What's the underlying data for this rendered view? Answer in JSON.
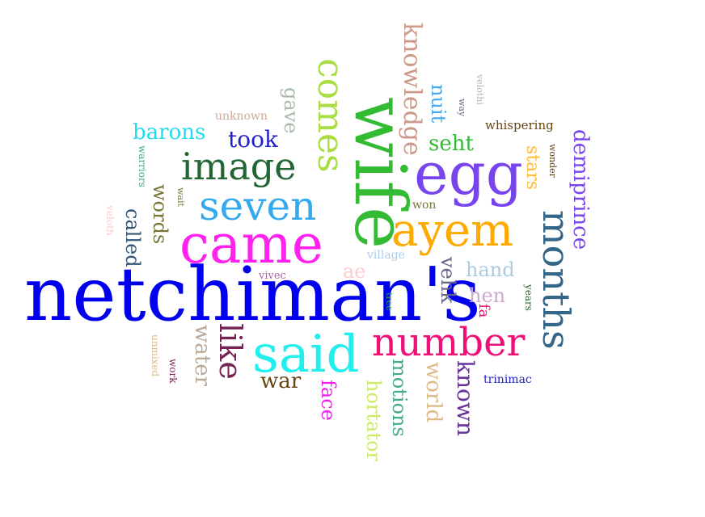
{
  "words": [
    {
      "text": "netchiman's",
      "color": "#0000ee"
    },
    {
      "text": "wife",
      "color": "#33bb33"
    },
    {
      "text": "said",
      "color": "#22eeee"
    },
    {
      "text": "came",
      "color": "#ff22ee"
    },
    {
      "text": "egg",
      "color": "#7744ee"
    },
    {
      "text": "ayem",
      "color": "#ffaa00"
    },
    {
      "text": "seven",
      "color": "#33aaee"
    },
    {
      "text": "number",
      "color": "#ee1177"
    },
    {
      "text": "months",
      "color": "#336688"
    },
    {
      "text": "image",
      "color": "#226633"
    },
    {
      "text": "comes",
      "color": "#aadd44"
    },
    {
      "text": "like",
      "color": "#772255"
    },
    {
      "text": "knowledge",
      "color": "#cc9988"
    },
    {
      "text": "known",
      "color": "#663399"
    },
    {
      "text": "demiprince",
      "color": "#7744ee"
    },
    {
      "text": "world",
      "color": "#ddbb88"
    },
    {
      "text": "motions",
      "color": "#44aa88"
    },
    {
      "text": "hortator",
      "color": "#ccee66"
    },
    {
      "text": "war",
      "color": "#664411"
    },
    {
      "text": "water",
      "color": "#bbaa99"
    },
    {
      "text": "words",
      "color": "#777733"
    },
    {
      "text": "called",
      "color": "#335577"
    },
    {
      "text": "barons",
      "color": "#22ddee"
    },
    {
      "text": "took",
      "color": "#2222cc"
    },
    {
      "text": "gave",
      "color": "#aabbaa"
    },
    {
      "text": "face",
      "color": "#ee22ee"
    },
    {
      "text": "seht",
      "color": "#33bb33"
    },
    {
      "text": "nuit",
      "color": "#44aaee"
    },
    {
      "text": "hand",
      "color": "#aaccdd"
    },
    {
      "text": "hen",
      "color": "#ccaacc"
    },
    {
      "text": "vehk",
      "color": "#666688"
    },
    {
      "text": "stars",
      "color": "#ffbb33"
    },
    {
      "text": "ae",
      "color": "#ffcccc"
    },
    {
      "text": "fa",
      "color": "#ee1177"
    },
    {
      "text": "whispering",
      "color": "#664411"
    },
    {
      "text": "unknown",
      "color": "#ccaa99"
    },
    {
      "text": "warriors",
      "color": "#44aa88"
    },
    {
      "text": "wait",
      "color": "#777733"
    },
    {
      "text": "veloth",
      "color": "#ffcccc"
    },
    {
      "text": "vivec",
      "color": "#aa66aa"
    },
    {
      "text": "village",
      "color": "#aaccee"
    },
    {
      "text": "won",
      "color": "#777733"
    },
    {
      "text": "wonder",
      "color": "#664411"
    },
    {
      "text": "way",
      "color": "#666688"
    },
    {
      "text": "velothi",
      "color": "#aabbaa"
    },
    {
      "text": "tree",
      "color": "#33bb33"
    },
    {
      "text": "years",
      "color": "#226633"
    },
    {
      "text": "trinimac",
      "color": "#2222cc"
    },
    {
      "text": "work",
      "color": "#772255"
    },
    {
      "text": "unmixed",
      "color": "#ddbb88"
    }
  ]
}
